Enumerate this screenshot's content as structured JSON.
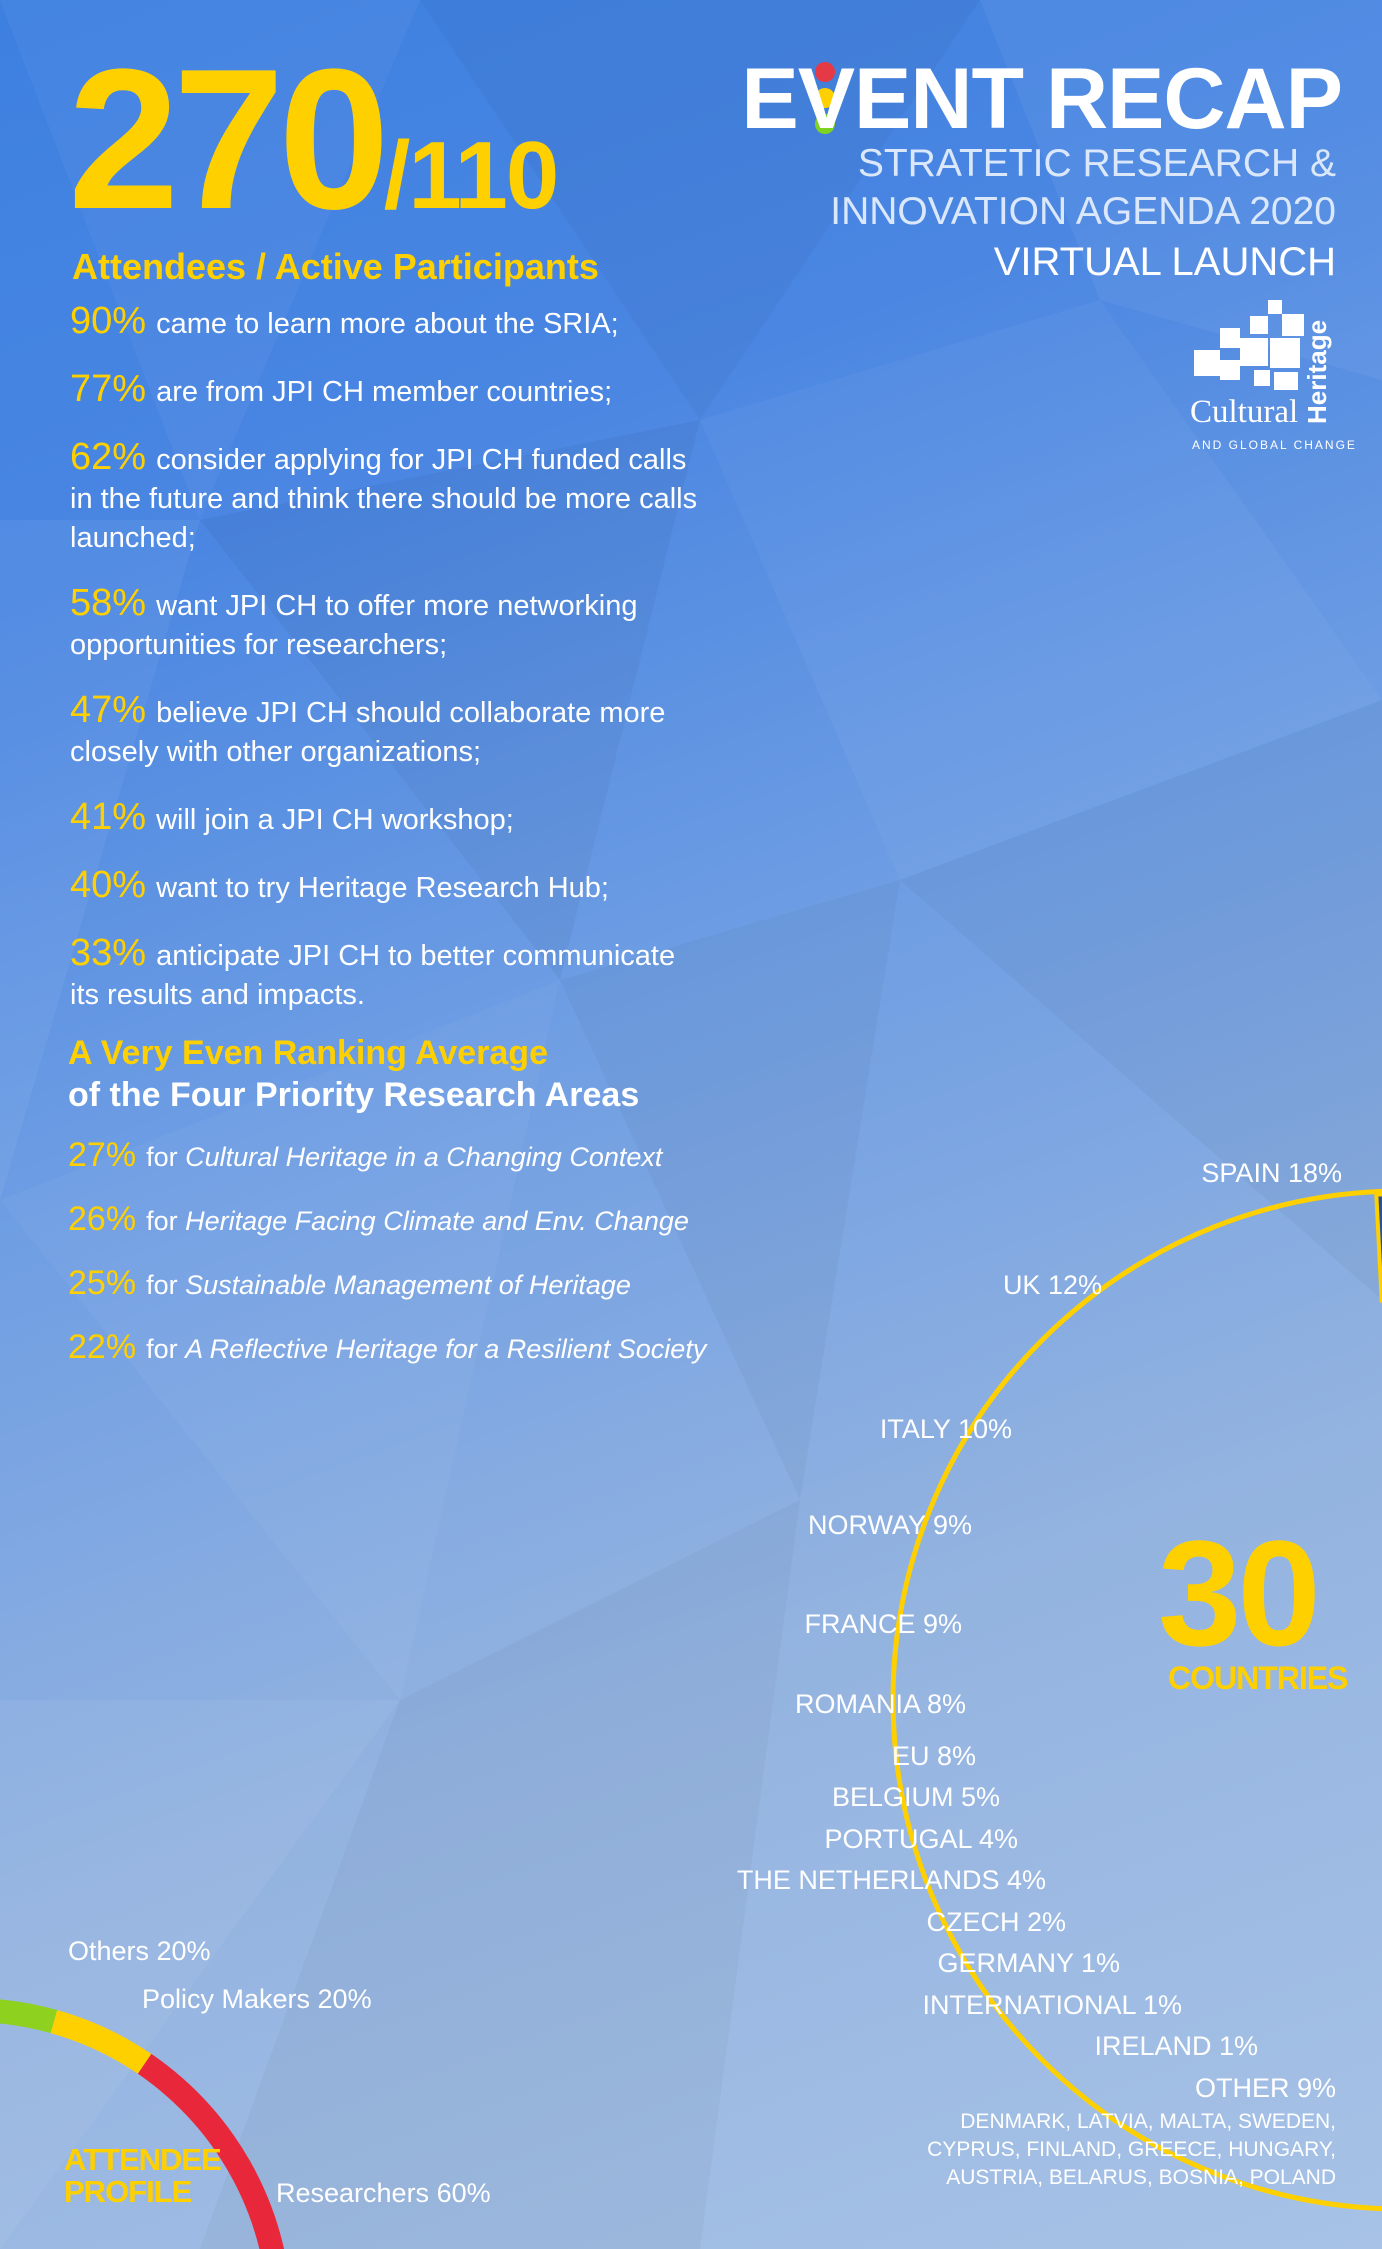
{
  "headline": {
    "attendees": "270",
    "active": "/110",
    "label": "Attendees / Active Participants"
  },
  "title": {
    "main": "EVENT RECAP",
    "line1": "STRATETIC RESEARCH &",
    "line2": "INNOVATION AGENDA 2020",
    "line3": "VIRTUAL LAUNCH",
    "dot_colors": [
      "#e63946",
      "#ffd000",
      "#7ed321"
    ]
  },
  "logo": {
    "word": "Cultural",
    "vertical": "Heritage",
    "tagline": "AND GLOBAL CHANGE"
  },
  "facts": [
    {
      "pct": "90%",
      "text": "came to learn more about the SRIA;"
    },
    {
      "pct": "77%",
      "text": "are from JPI CH member countries;"
    },
    {
      "pct": "62%",
      "text": "consider applying for JPI CH funded calls in the future and think there should be more calls launched;"
    },
    {
      "pct": "58%",
      "text": "want JPI CH to offer more networking opportunities for researchers;"
    },
    {
      "pct": "47%",
      "text": "believe JPI CH should collaborate more closely with other organizations;"
    },
    {
      "pct": "41%",
      "text": "will join a JPI CH workshop;"
    },
    {
      "pct": "40%",
      "text": "want to try Heritage Research Hub;"
    },
    {
      "pct": "33%",
      "text": "anticipate JPI CH to better communicate its results and impacts."
    }
  ],
  "ranking": {
    "title1": "A Very Even Ranking Average",
    "title2": "of the Four Priority Research Areas",
    "items": [
      {
        "pct": "27%",
        "pre": "for",
        "area": "Cultural Heritage in a Changing Context"
      },
      {
        "pct": "26%",
        "pre": "for",
        "area": "Heritage Facing Climate and Env. Change"
      },
      {
        "pct": "25%",
        "pre": "for",
        "area": "Sustainable Management of Heritage"
      },
      {
        "pct": "22%",
        "pre": "for",
        "area": "A Reflective Heritage for a Resilient Society"
      }
    ]
  },
  "chart_data": [
    {
      "type": "pie",
      "variant": "donut",
      "center_value": "30",
      "center_label": "COUNTRIES",
      "categories": [
        "SPAIN",
        "UK",
        "ITALY",
        "NORWAY",
        "FRANCE",
        "ROMANIA",
        "EU",
        "BELGIUM",
        "PORTUGAL",
        "THE NETHERLANDS",
        "CZECH",
        "GERMANY",
        "INTERNATIONAL",
        "IRELAND",
        "OTHER"
      ],
      "values": [
        18,
        12,
        10,
        9,
        9,
        8,
        8,
        5,
        4,
        4,
        2,
        1,
        1,
        1,
        9
      ],
      "labels": [
        "SPAIN 18%",
        "UK 12%",
        "ITALY 10%",
        "NORWAY 9%",
        "FRANCE 9%",
        "ROMANIA 8%",
        "EU 8%",
        "BELGIUM 5%",
        "PORTUGAL 4%",
        "THE NETHERLANDS 4%",
        "CZECH 2%",
        "GERMANY 1%",
        "INTERNATIONAL 1%",
        "IRELAND 1%",
        "OTHER 9%"
      ],
      "other_countries": [
        "DENMARK, LATVIA, MALTA, SWEDEN,",
        "CYPRUS, FINLAND, GREECE, HUNGARY,",
        "AUSTRIA, BELARUS, BOSNIA, POLAND"
      ],
      "colors": [
        "#2c5190",
        "#2f5797",
        "#325d9f",
        "#3663a8",
        "#3a69b0",
        "#3e6fb8",
        "#4376bf",
        "#4a7dc6",
        "#5b88cc",
        "#6f96d2",
        "#839fd4",
        "#8da8d8",
        "#98b0dc",
        "#a2b8e0",
        "#d8dff0"
      ],
      "outline_color": "#ffd000"
    },
    {
      "type": "pie",
      "variant": "donut",
      "center_label": "ATTENDEE PROFILE",
      "categories": [
        "Others",
        "Policy Makers",
        "Researchers"
      ],
      "values": [
        20,
        20,
        60
      ],
      "labels": [
        "Others 20%",
        "Policy Makers 20%",
        "Researchers 60%"
      ],
      "colors": [
        "#8fd11f",
        "#ffd000",
        "#e8283a"
      ]
    }
  ]
}
